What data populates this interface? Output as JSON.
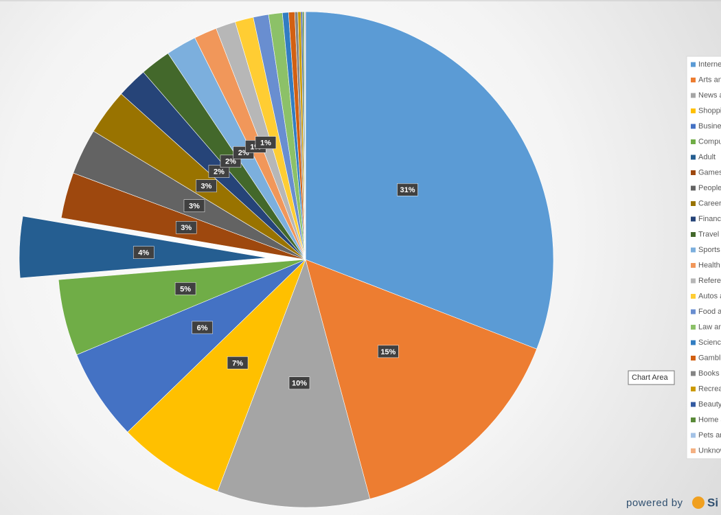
{
  "chart_data": {
    "type": "pie",
    "categories": [
      "Interne",
      "Arts an",
      "News a",
      "Shoppi",
      "Busine",
      "Compu",
      "Adult",
      "Games",
      "People",
      "Career",
      "Finance",
      "Travel",
      "Sports",
      "Health",
      "Referer",
      "Autos a",
      "Food a",
      "Law an",
      "Science",
      "Gambli",
      "Books a",
      "Recrea",
      "Beauty",
      "Home a",
      "Pets an",
      "Unknow"
    ],
    "values": [
      31,
      15,
      10,
      7,
      6,
      5,
      4,
      3,
      3,
      3,
      2,
      2,
      2,
      1.5,
      1.3,
      1.2,
      1.0,
      0.9,
      0.4,
      0.4,
      0.2,
      0.2,
      0.1,
      0.1,
      0.05,
      0.05
    ],
    "value_labels": [
      "31%",
      "15%",
      "10%",
      "7%",
      "6%",
      "5%",
      "4%",
      "3%",
      "3%",
      "3%",
      "2%",
      "2%",
      "2%",
      "1%",
      "1%",
      null,
      null,
      null,
      null,
      null,
      null,
      null,
      null,
      null,
      null,
      null
    ],
    "colors": [
      "#5b9bd5",
      "#ed7d31",
      "#a5a5a5",
      "#ffc000",
      "#4472c4",
      "#70ad47",
      "#255e91",
      "#9e480e",
      "#636363",
      "#997300",
      "#264478",
      "#43682b",
      "#7cafdd",
      "#f1975a",
      "#b7b7b7",
      "#ffcd33",
      "#698ed0",
      "#8cc168",
      "#327dc2",
      "#d26012",
      "#848484",
      "#cc9a00",
      "#335aa1",
      "#5a8a39",
      "#a3c2e6",
      "#f4b183"
    ],
    "exploded": "Adult",
    "legend": "right",
    "tooltip": "Chart Area",
    "credit": "powered by",
    "credit_brand": "Si"
  }
}
